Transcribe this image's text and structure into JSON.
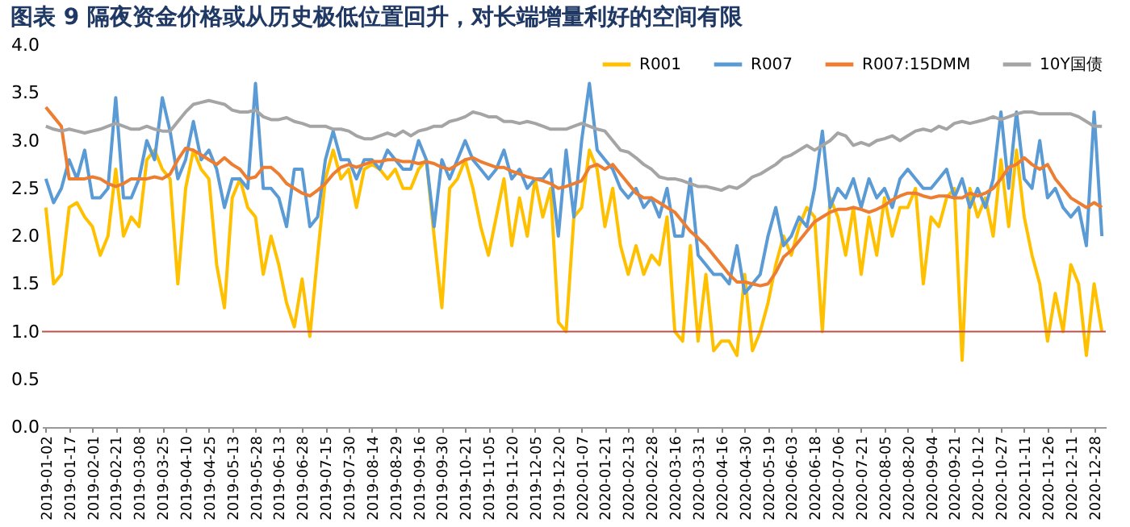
{
  "chart_data": {
    "type": "line",
    "title": "图表 9  隔夜资金价格或从历史极低位置回升，对长端增量利好的空间有限",
    "categories": [
      "2019-01-02",
      null,
      null,
      "2019-01-17",
      null,
      null,
      "2019-02-01",
      null,
      null,
      "2019-02-21",
      null,
      null,
      "2019-03-08",
      null,
      null,
      "2019-03-25",
      null,
      null,
      "2019-04-10",
      null,
      null,
      "2019-04-25",
      null,
      null,
      "2019-05-13",
      null,
      null,
      "2019-05-28",
      null,
      null,
      "2019-06-13",
      null,
      null,
      "2019-06-28",
      null,
      null,
      "2019-07-15",
      null,
      null,
      "2019-07-30",
      null,
      null,
      "2019-08-14",
      null,
      null,
      "2019-08-29",
      null,
      null,
      "2019-09-16",
      null,
      null,
      "2019-09-30",
      null,
      null,
      "2019-10-21",
      null,
      null,
      "2019-11-05",
      null,
      null,
      "2019-11-20",
      null,
      null,
      "2019-12-05",
      null,
      null,
      "2019-12-20",
      null,
      null,
      "2020-01-07",
      null,
      null,
      "2020-01-21",
      null,
      null,
      "2020-02-13",
      null,
      null,
      "2020-02-28",
      null,
      null,
      "2020-03-16",
      null,
      null,
      "2020-03-31",
      null,
      null,
      "2020-04-16",
      null,
      null,
      "2020-04-30",
      null,
      null,
      "2020-05-19",
      null,
      null,
      "2020-06-03",
      null,
      null,
      "2020-06-18",
      null,
      null,
      "2020-07-06",
      null,
      null,
      "2020-07-21",
      null,
      null,
      "2020-08-05",
      null,
      null,
      "2020-08-20",
      null,
      null,
      "2020-09-04",
      null,
      null,
      "2020-09-21",
      null,
      null,
      "2020-10-12",
      null,
      null,
      "2020-10-27",
      null,
      null,
      "2020-11-11",
      null,
      null,
      "2020-11-26",
      null,
      null,
      "2020-12-11",
      null,
      null,
      "2020-12-28",
      null
    ],
    "series": [
      {
        "name": "R001",
        "color": "#ffc000",
        "values": [
          2.3,
          1.5,
          1.6,
          2.3,
          2.35,
          2.2,
          2.1,
          1.8,
          2.0,
          2.7,
          2.0,
          2.2,
          2.1,
          2.8,
          2.9,
          2.7,
          2.6,
          1.5,
          2.5,
          2.9,
          2.7,
          2.6,
          1.7,
          1.25,
          2.4,
          2.6,
          2.3,
          2.2,
          1.6,
          2.0,
          1.7,
          1.3,
          1.05,
          1.55,
          0.95,
          1.8,
          2.6,
          2.9,
          2.6,
          2.7,
          2.3,
          2.7,
          2.75,
          2.7,
          2.6,
          2.7,
          2.5,
          2.5,
          2.7,
          2.8,
          2.0,
          1.25,
          2.5,
          2.6,
          2.8,
          2.5,
          2.1,
          1.8,
          2.2,
          2.6,
          1.9,
          2.4,
          2.0,
          2.6,
          2.2,
          2.5,
          1.1,
          1.0,
          2.2,
          2.3,
          2.9,
          2.7,
          2.1,
          2.5,
          1.9,
          1.6,
          1.9,
          1.6,
          1.8,
          1.7,
          2.2,
          1.0,
          0.9,
          1.9,
          0.9,
          1.6,
          0.8,
          0.9,
          0.9,
          0.75,
          1.6,
          0.8,
          1.0,
          1.3,
          1.7,
          2.0,
          1.8,
          2.1,
          2.3,
          2.2,
          1.0,
          2.4,
          2.2,
          1.8,
          2.3,
          1.6,
          2.2,
          1.8,
          2.4,
          2.0,
          2.3,
          2.3,
          2.5,
          1.5,
          2.2,
          2.1,
          2.4,
          2.5,
          0.7,
          2.5,
          2.2,
          2.4,
          2.0,
          2.8,
          2.1,
          2.9,
          2.2,
          1.8,
          1.5,
          0.9,
          1.4,
          1.0,
          1.7,
          1.5,
          0.75,
          1.5,
          1.0
        ]
      },
      {
        "name": "R007",
        "color": "#5b9bd5",
        "values": [
          2.6,
          2.35,
          2.5,
          2.8,
          2.6,
          2.9,
          2.4,
          2.4,
          2.5,
          3.45,
          2.4,
          2.4,
          2.6,
          3.0,
          2.8,
          3.45,
          3.1,
          2.6,
          2.8,
          3.2,
          2.8,
          2.9,
          2.7,
          2.3,
          2.6,
          2.6,
          2.5,
          3.6,
          2.5,
          2.5,
          2.4,
          2.1,
          2.7,
          2.7,
          2.1,
          2.2,
          2.8,
          3.1,
          2.8,
          2.8,
          2.6,
          2.8,
          2.8,
          2.7,
          2.9,
          2.8,
          2.7,
          2.7,
          3.0,
          2.8,
          2.1,
          2.8,
          2.6,
          2.8,
          3.0,
          2.8,
          2.7,
          2.6,
          2.7,
          2.9,
          2.6,
          2.7,
          2.5,
          2.6,
          2.6,
          2.7,
          2.0,
          2.9,
          2.2,
          3.0,
          3.6,
          2.9,
          2.8,
          2.7,
          2.5,
          2.4,
          2.5,
          2.3,
          2.4,
          2.2,
          2.5,
          2.0,
          2.0,
          2.6,
          1.8,
          1.7,
          1.6,
          1.6,
          1.5,
          1.9,
          1.4,
          1.5,
          1.6,
          2.0,
          2.3,
          1.9,
          2.0,
          2.2,
          2.1,
          2.5,
          3.1,
          2.3,
          2.5,
          2.4,
          2.6,
          2.3,
          2.6,
          2.4,
          2.5,
          2.3,
          2.6,
          2.7,
          2.6,
          2.5,
          2.5,
          2.6,
          2.7,
          2.4,
          2.6,
          2.3,
          2.5,
          2.3,
          2.6,
          3.3,
          2.5,
          3.3,
          2.6,
          2.5,
          3.0,
          2.4,
          2.5,
          2.3,
          2.2,
          2.3,
          1.9,
          3.3,
          2.0
        ]
      },
      {
        "name": "R007:15DMM",
        "color": "#ed7d31",
        "values": [
          3.35,
          3.25,
          3.15,
          2.6,
          2.6,
          2.6,
          2.62,
          2.6,
          2.55,
          2.52,
          2.55,
          2.6,
          2.6,
          2.6,
          2.62,
          2.6,
          2.65,
          2.8,
          2.92,
          2.9,
          2.85,
          2.8,
          2.75,
          2.82,
          2.75,
          2.7,
          2.6,
          2.62,
          2.72,
          2.72,
          2.65,
          2.55,
          2.5,
          2.45,
          2.42,
          2.48,
          2.55,
          2.65,
          2.72,
          2.75,
          2.72,
          2.75,
          2.78,
          2.78,
          2.8,
          2.8,
          2.78,
          2.78,
          2.76,
          2.78,
          2.76,
          2.72,
          2.7,
          2.75,
          2.8,
          2.82,
          2.78,
          2.75,
          2.72,
          2.72,
          2.68,
          2.65,
          2.62,
          2.6,
          2.58,
          2.55,
          2.5,
          2.52,
          2.55,
          2.58,
          2.72,
          2.75,
          2.7,
          2.75,
          2.65,
          2.55,
          2.45,
          2.4,
          2.4,
          2.35,
          2.3,
          2.25,
          2.15,
          2.05,
          1.98,
          1.9,
          1.8,
          1.7,
          1.6,
          1.52,
          1.52,
          1.5,
          1.48,
          1.5,
          1.62,
          1.78,
          1.85,
          1.95,
          2.05,
          2.15,
          2.2,
          2.25,
          2.28,
          2.28,
          2.3,
          2.28,
          2.25,
          2.28,
          2.32,
          2.38,
          2.42,
          2.45,
          2.45,
          2.42,
          2.4,
          2.42,
          2.42,
          2.4,
          2.4,
          2.45,
          2.42,
          2.45,
          2.5,
          2.6,
          2.72,
          2.75,
          2.82,
          2.75,
          2.7,
          2.75,
          2.6,
          2.5,
          2.4,
          2.35,
          2.3,
          2.35,
          2.3
        ]
      },
      {
        "name": "10Y国债",
        "color": "#a5a5a5",
        "values": [
          3.15,
          3.12,
          3.1,
          3.12,
          3.1,
          3.08,
          3.1,
          3.12,
          3.15,
          3.18,
          3.15,
          3.12,
          3.12,
          3.15,
          3.12,
          3.1,
          3.1,
          3.2,
          3.3,
          3.38,
          3.4,
          3.42,
          3.4,
          3.38,
          3.32,
          3.3,
          3.3,
          3.32,
          3.25,
          3.22,
          3.22,
          3.24,
          3.2,
          3.18,
          3.15,
          3.15,
          3.15,
          3.12,
          3.12,
          3.1,
          3.05,
          3.02,
          3.02,
          3.05,
          3.08,
          3.05,
          3.1,
          3.05,
          3.1,
          3.12,
          3.15,
          3.15,
          3.2,
          3.22,
          3.25,
          3.3,
          3.28,
          3.25,
          3.25,
          3.2,
          3.2,
          3.18,
          3.2,
          3.18,
          3.15,
          3.12,
          3.12,
          3.12,
          3.15,
          3.18,
          3.15,
          3.12,
          3.1,
          3.0,
          2.9,
          2.88,
          2.82,
          2.75,
          2.7,
          2.62,
          2.6,
          2.6,
          2.58,
          2.55,
          2.52,
          2.52,
          2.5,
          2.48,
          2.52,
          2.5,
          2.55,
          2.62,
          2.65,
          2.7,
          2.75,
          2.82,
          2.85,
          2.9,
          2.95,
          2.9,
          2.95,
          3.0,
          3.08,
          3.05,
          2.95,
          2.98,
          2.95,
          3.0,
          3.02,
          3.05,
          3.0,
          3.05,
          3.1,
          3.12,
          3.1,
          3.15,
          3.12,
          3.18,
          3.2,
          3.18,
          3.2,
          3.22,
          3.25,
          3.22,
          3.25,
          3.28,
          3.3,
          3.3,
          3.28,
          3.28,
          3.28,
          3.28,
          3.28,
          3.25,
          3.2,
          3.15,
          3.15
        ]
      }
    ],
    "ylim": [
      0,
      4
    ],
    "yticks": [
      {
        "value": 0,
        "label": "0.0"
      },
      {
        "value": 0.5,
        "label": "0.5"
      },
      {
        "value": 1,
        "label": "1.0"
      },
      {
        "value": 1.5,
        "label": "1.5"
      },
      {
        "value": 2,
        "label": "2.0"
      },
      {
        "value": 2.5,
        "label": "2.5"
      },
      {
        "value": 3,
        "label": "3.0"
      },
      {
        "value": 3.5,
        "label": "3.5"
      },
      {
        "value": 4,
        "label": "4.0"
      }
    ],
    "ref_lines": [
      {
        "axis": "y",
        "value": 1.0,
        "color": "#c0504d"
      }
    ],
    "legend": "top right",
    "grid": false,
    "marker": "none",
    "line_style": "solid"
  }
}
